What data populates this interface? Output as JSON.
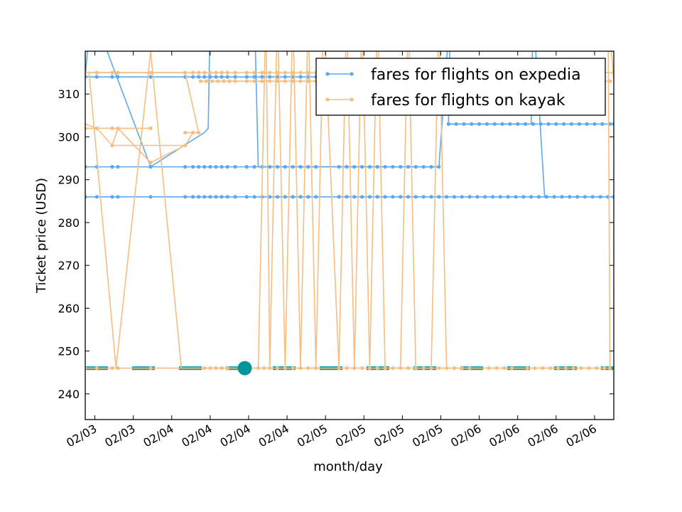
{
  "chart_data": {
    "type": "line",
    "xlabel": "month/day",
    "ylabel": "Ticket price (USD)",
    "ylim": [
      234,
      320
    ],
    "yticks": [
      240,
      250,
      260,
      270,
      280,
      290,
      300,
      310
    ],
    "xlim": [
      0,
      27.5
    ],
    "x_tick_positions": [
      0.5,
      2.5,
      4.5,
      6.5,
      8.5,
      10.5,
      12.5,
      14.5,
      16.5,
      18.5,
      20.5,
      22.5,
      24.5,
      26.5
    ],
    "xtick_labels": [
      "02/03",
      "02/03",
      "02/04",
      "02/04",
      "02/04",
      "02/04",
      "02/05",
      "02/05",
      "02/05",
      "02/05",
      "02/06",
      "02/06",
      "02/06",
      "02/06"
    ],
    "grid": false,
    "legend_position": "top-right",
    "series": [
      {
        "name": "fares for flights on expedia",
        "color": "#5DA9F0",
        "levels": [
          {
            "y": 314,
            "x": [
              0,
              0.6,
              1.4,
              1.7,
              3.4,
              5.2,
              5.6,
              5.9,
              6.2,
              6.5,
              6.8,
              7.1,
              7.4,
              7.8,
              8.4,
              8.8,
              9.2,
              9.6,
              10.0,
              10.4,
              10.8,
              11.2,
              11.6,
              12.0,
              13.5
            ]
          },
          {
            "y": 293,
            "x": [
              0,
              0.6,
              1.4,
              1.7,
              3.4,
              5.2,
              5.6,
              5.9,
              6.2,
              6.5,
              6.8,
              7.1,
              7.4,
              7.8,
              8.4,
              8.8,
              9.2,
              9.6,
              10.0,
              10.4,
              10.8,
              11.2,
              11.6,
              12.0,
              13.2,
              13.6,
              14.0,
              14.4,
              14.8,
              15.2,
              15.6,
              16.0,
              16.4,
              16.8,
              17.2,
              17.6,
              18.0,
              18.4
            ]
          },
          {
            "y": 286,
            "x": [
              0,
              0.6,
              1.4,
              1.7,
              3.4,
              5.2,
              5.6,
              5.9,
              6.2,
              6.5,
              6.8,
              7.1,
              7.4,
              7.8,
              8.4,
              8.8,
              9.2,
              9.6,
              10.0,
              10.4,
              10.8,
              11.2,
              11.6,
              12.0,
              13.2,
              13.6,
              14.0,
              14.4,
              14.8,
              15.2,
              15.6,
              16.0,
              16.4,
              16.8,
              17.2,
              17.6,
              18.0,
              18.4,
              18.8,
              19.2,
              19.6,
              20.0,
              20.4,
              20.8,
              21.2,
              21.6,
              22.0,
              22.4,
              22.8,
              23.2,
              23.6,
              24.0,
              24.4,
              24.8,
              25.2,
              25.6,
              26.0,
              26.4,
              26.8,
              27.2,
              27.5
            ]
          },
          {
            "y": 303,
            "x": [
              18.9,
              19.3,
              19.7,
              20.1,
              20.5,
              20.9,
              21.3,
              21.7,
              22.1,
              22.5,
              22.9,
              23.3,
              23.7,
              24.1,
              24.5,
              24.9,
              25.3,
              25.7,
              26.1,
              26.5,
              26.9,
              27.3,
              27.5
            ]
          }
        ],
        "trace": [
          [
            0,
            314
          ],
          [
            0.3,
            330
          ],
          [
            3.4,
            293
          ],
          [
            6.2,
            301
          ],
          [
            6.4,
            302
          ],
          [
            6.5,
            330
          ],
          [
            8.8,
            330
          ],
          [
            9.0,
            293
          ],
          [
            18.4,
            293
          ],
          [
            19.0,
            330
          ],
          [
            18.9,
            303
          ],
          [
            23.2,
            303
          ],
          [
            23.3,
            330
          ],
          [
            23.9,
            286
          ],
          [
            27.5,
            286
          ]
        ]
      },
      {
        "name": "fares for flights on kayak",
        "color": "#F8BD80",
        "levels": [
          {
            "y": 315,
            "x": [
              0,
              0.6,
              1.4,
              1.7,
              3.4,
              5.2,
              5.6,
              5.9,
              6.2,
              6.5,
              6.8,
              7.1,
              7.4,
              7.8,
              8.4,
              8.8,
              9.2,
              9.6,
              10.0,
              10.4,
              10.8,
              11.2,
              11.6,
              12.0,
              13.2,
              27.5
            ]
          },
          {
            "y": 313,
            "x": [
              6.0,
              6.3,
              6.6,
              6.9,
              7.2,
              7.5,
              7.8,
              8.4,
              8.8,
              9.2,
              9.6,
              10.0,
              10.4,
              10.8,
              11.2,
              11.6,
              12.0,
              27.3
            ]
          },
          {
            "y": 302,
            "x": [
              0,
              0.6,
              1.4,
              1.7,
              3.4
            ]
          },
          {
            "y": 301,
            "x": [
              5.2,
              5.6,
              5.9
            ]
          },
          {
            "y": 298,
            "x": [
              1.4,
              5.2
            ]
          },
          {
            "y": 294,
            "x": [
              3.4
            ]
          },
          {
            "y": 246,
            "x": [
              0,
              0.6,
              1.4,
              1.7,
              3.4,
              6.2,
              6.5,
              6.8,
              7.1,
              7.4,
              9.0,
              9.3,
              9.6,
              10.0,
              10.4,
              10.8,
              11.2,
              11.6,
              12.0,
              13.2,
              13.6,
              14.0,
              14.4,
              14.8,
              15.2,
              15.6,
              16.0,
              16.4,
              16.8,
              17.2,
              17.6,
              18.0,
              18.4,
              18.8,
              19.2,
              19.6,
              20.0,
              21.0,
              21.4,
              21.8,
              22.2,
              23.0,
              23.4,
              23.8,
              24.2,
              24.6,
              25.0,
              25.4,
              25.8,
              26.2,
              26.6,
              27.0,
              27.3
            ]
          }
        ],
        "trace": [
          [
            0,
            303
          ],
          [
            0.6,
            302
          ],
          [
            1.4,
            298
          ],
          [
            1.7,
            302
          ],
          [
            3.4,
            294
          ],
          [
            5.2,
            298
          ],
          [
            5.6,
            301
          ],
          [
            5.9,
            301
          ],
          [
            5.2,
            315
          ],
          [
            0.2,
            315
          ],
          [
            1.6,
            246
          ],
          [
            3.4,
            320
          ],
          [
            5.0,
            246
          ],
          [
            6.5,
            246
          ],
          [
            7.1,
            246
          ],
          [
            9.0,
            246
          ],
          [
            9.4,
            330
          ],
          [
            9.6,
            246
          ],
          [
            10.0,
            330
          ],
          [
            10.4,
            246
          ],
          [
            10.8,
            330
          ],
          [
            11.2,
            246
          ],
          [
            11.6,
            330
          ],
          [
            12.0,
            246
          ],
          [
            12.4,
            330
          ],
          [
            13.2,
            246
          ],
          [
            13.6,
            330
          ],
          [
            14.0,
            246
          ],
          [
            14.4,
            330
          ],
          [
            14.8,
            246
          ],
          [
            15.2,
            330
          ],
          [
            15.6,
            246
          ],
          [
            16.0,
            246
          ],
          [
            16.4,
            246
          ],
          [
            16.8,
            330
          ],
          [
            17.2,
            246
          ],
          [
            17.6,
            246
          ],
          [
            18.0,
            246
          ],
          [
            18.4,
            330
          ],
          [
            18.8,
            246
          ],
          [
            19.2,
            246
          ],
          [
            19.6,
            246
          ],
          [
            20.0,
            246
          ],
          [
            27.3,
            246
          ],
          [
            27.2,
            330
          ],
          [
            27.5,
            313
          ]
        ]
      }
    ],
    "highlight_line": {
      "y": 246,
      "color": "#00959A",
      "style": "dashed"
    },
    "highlight_point": {
      "x": 8.3,
      "y": 246,
      "color": "#00959A"
    }
  }
}
